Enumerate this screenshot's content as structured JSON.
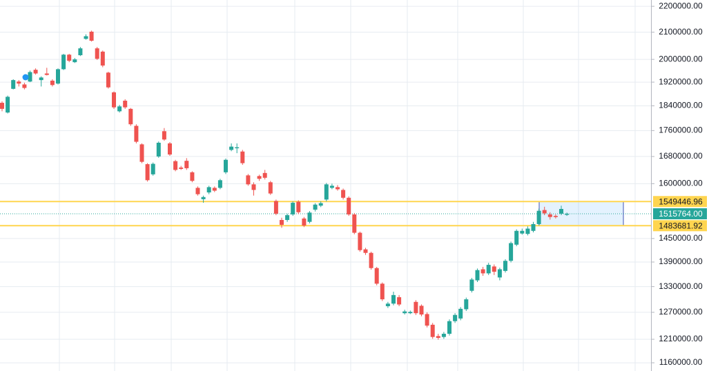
{
  "chart_data": {
    "type": "candlestick",
    "log_scale": true,
    "grid": true,
    "up_color": "#26a69a",
    "down_color": "#ef5350",
    "ylim": [
      1143000,
      2225000
    ],
    "yticks": [
      {
        "value": 2200000,
        "label": "2200000.00"
      },
      {
        "value": 2100000,
        "label": "2100000.00"
      },
      {
        "value": 2000000,
        "label": "2000000.00"
      },
      {
        "value": 1920000,
        "label": "1920000.00"
      },
      {
        "value": 1840000,
        "label": "1840000.00"
      },
      {
        "value": 1760000,
        "label": "1760000.00"
      },
      {
        "value": 1680000,
        "label": "1680000.00"
      },
      {
        "value": 1600000,
        "label": "1600000.00"
      },
      {
        "value": 1450000,
        "label": "1450000.00"
      },
      {
        "value": 1390000,
        "label": "1390000.00"
      },
      {
        "value": 1330000,
        "label": "1330000.00"
      },
      {
        "value": 1270000,
        "label": "1270000.00"
      },
      {
        "value": 1210000,
        "label": "1210000.00"
      },
      {
        "value": 1160000,
        "label": "1160000.00"
      }
    ],
    "open": [
      1850000,
      1818000,
      1897000,
      1922000,
      1912000,
      1922000,
      1963000,
      1927000,
      1950000,
      1925000,
      1915000,
      1965000,
      2017000,
      1990000,
      2015000,
      2075000,
      2102000,
      2040000,
      2028000,
      1953000,
      1885000,
      1822000,
      1857000,
      1830000,
      1775000,
      1717000,
      1657000,
      1627000,
      1680000,
      1758000,
      1720000,
      1666000,
      1647000,
      1667000,
      1633000,
      1588000,
      1556000,
      1575000,
      1588000,
      1588000,
      1633000,
      1700000,
      1705000,
      1695000,
      1624000,
      1598000,
      1622000,
      1631000,
      1604000,
      1551000,
      1499000,
      1499000,
      1514000,
      1549000,
      1503000,
      1494000,
      1527000,
      1538000,
      1555000,
      1588000,
      1590000,
      1582000,
      1560000,
      1514000,
      1465000,
      1422000,
      1413000,
      1375000,
      1337000,
      1284000,
      1290000,
      1305000,
      1268000,
      1268000,
      1294000,
      1285000,
      1266000,
      1242000,
      1217000,
      1215000,
      1222000,
      1250000,
      1256000,
      1277000,
      1320000,
      1345000,
      1372000,
      1362000,
      1379000,
      1352000,
      1368000,
      1393000,
      1434000,
      1463000,
      1462000,
      1470000,
      1488000,
      1526000,
      1514000,
      1510000,
      1516000,
      1513000
    ],
    "high": [
      1855000,
      1874000,
      1930000,
      1927000,
      1918000,
      1960000,
      1968000,
      1940000,
      1970000,
      1930000,
      1968000,
      2020000,
      2020000,
      2005000,
      2045000,
      2092000,
      2106000,
      2045000,
      2032000,
      1956000,
      1888000,
      1843000,
      1862000,
      1833000,
      1780000,
      1720000,
      1660000,
      1662000,
      1726000,
      1768000,
      1724000,
      1670000,
      1652000,
      1675000,
      1636000,
      1592000,
      1566000,
      1594000,
      1592000,
      1614000,
      1674000,
      1720000,
      1720000,
      1700000,
      1628000,
      1604000,
      1626000,
      1640000,
      1608000,
      1555000,
      1505000,
      1516000,
      1550000,
      1553000,
      1507000,
      1523000,
      1545000,
      1550000,
      1602000,
      1600000,
      1596000,
      1586000,
      1564000,
      1518000,
      1468000,
      1426000,
      1416000,
      1378000,
      1340000,
      1294000,
      1318000,
      1310000,
      1276000,
      1274000,
      1298000,
      1288000,
      1270000,
      1246000,
      1222000,
      1226000,
      1254000,
      1268000,
      1282000,
      1304000,
      1351000,
      1374000,
      1378000,
      1388000,
      1384000,
      1376000,
      1397000,
      1442000,
      1474000,
      1476000,
      1482000,
      1494000,
      1530000,
      1535000,
      1520000,
      1514000,
      1538000,
      1519000
    ],
    "low": [
      1822000,
      1815000,
      1895000,
      1905000,
      1895000,
      1920000,
      1946000,
      1905000,
      1943000,
      1905000,
      1912000,
      1962000,
      1990000,
      1987000,
      2012000,
      2072000,
      2065000,
      1998000,
      1972000,
      1898000,
      1830000,
      1818000,
      1830000,
      1775000,
      1720000,
      1660000,
      1606000,
      1623000,
      1676000,
      1728000,
      1682000,
      1636000,
      1640000,
      1640000,
      1604000,
      1566000,
      1546000,
      1570000,
      1576000,
      1584000,
      1628000,
      1696000,
      1690000,
      1655000,
      1594000,
      1566000,
      1608000,
      1612000,
      1568000,
      1512000,
      1478000,
      1494000,
      1510000,
      1515000,
      1480000,
      1490000,
      1522000,
      1534000,
      1550000,
      1584000,
      1580000,
      1555000,
      1510000,
      1461000,
      1416000,
      1408000,
      1371000,
      1333000,
      1296000,
      1280000,
      1286000,
      1284000,
      1265000,
      1266000,
      1264000,
      1261000,
      1236000,
      1211000,
      1209000,
      1211000,
      1218000,
      1246000,
      1252000,
      1273000,
      1316000,
      1341000,
      1356000,
      1358000,
      1358000,
      1345000,
      1364000,
      1389000,
      1430000,
      1460000,
      1458000,
      1466000,
      1484000,
      1512000,
      1500000,
      1503000,
      1512000,
      1510000
    ],
    "close": [
      1830000,
      1870000,
      1927000,
      1915000,
      1900000,
      1955000,
      1950000,
      1936000,
      1945000,
      1910000,
      1965000,
      2017000,
      1995000,
      2000000,
      2040000,
      2085000,
      2068000,
      2002000,
      1978000,
      1902000,
      1835000,
      1838000,
      1835000,
      1780000,
      1725000,
      1664000,
      1610000,
      1658000,
      1722000,
      1732000,
      1686000,
      1640000,
      1643000,
      1645000,
      1608000,
      1570000,
      1562000,
      1590000,
      1580000,
      1610000,
      1670000,
      1710000,
      1708000,
      1660000,
      1598000,
      1582000,
      1614000,
      1617000,
      1572000,
      1516000,
      1486000,
      1512000,
      1546000,
      1520000,
      1484000,
      1519000,
      1541000,
      1545000,
      1598000,
      1594000,
      1584000,
      1560000,
      1514000,
      1465000,
      1420000,
      1413000,
      1375000,
      1337000,
      1300000,
      1290000,
      1310000,
      1288000,
      1272000,
      1271000,
      1268000,
      1265000,
      1240000,
      1215000,
      1213000,
      1222000,
      1250000,
      1264000,
      1278000,
      1300000,
      1347000,
      1370000,
      1362000,
      1383000,
      1366000,
      1372000,
      1393000,
      1438000,
      1470000,
      1470000,
      1476000,
      1488000,
      1524000,
      1517000,
      1507000,
      1507000,
      1529000,
      1515764
    ],
    "levels": [
      1549446.96,
      1483681.92
    ],
    "level_color": "#ffd54f",
    "current_price": {
      "value": 1515764,
      "label": "1515764.00"
    },
    "current_price_color": "#26a69a"
  }
}
